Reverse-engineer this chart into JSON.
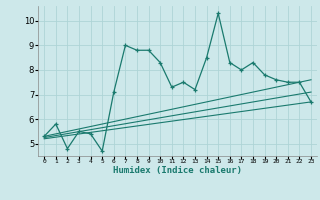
{
  "xlabel": "Humidex (Indice chaleur)",
  "bg_color": "#cde8ea",
  "line_color": "#1a7a6e",
  "grid_color": "#aed4d6",
  "x_ticks": [
    0,
    1,
    2,
    3,
    4,
    5,
    6,
    7,
    8,
    9,
    10,
    11,
    12,
    13,
    14,
    15,
    16,
    17,
    18,
    19,
    20,
    21,
    22,
    23
  ],
  "y_ticks": [
    5,
    6,
    7,
    8,
    9,
    10
  ],
  "xlim": [
    -0.5,
    23.5
  ],
  "ylim": [
    4.5,
    10.6
  ],
  "series1_x": [
    0,
    1,
    2,
    3,
    4,
    5,
    6,
    7,
    8,
    9,
    10,
    11,
    12,
    13,
    14,
    15,
    16,
    17,
    18,
    19,
    20,
    21,
    22,
    23
  ],
  "series1_y": [
    5.3,
    5.8,
    4.8,
    5.5,
    5.4,
    4.7,
    7.1,
    9.0,
    8.8,
    8.8,
    8.3,
    7.3,
    7.5,
    7.2,
    8.5,
    10.3,
    8.3,
    8.0,
    8.3,
    7.8,
    7.6,
    7.5,
    7.5,
    6.7
  ],
  "series2_x": [
    0,
    23
  ],
  "series2_y": [
    5.3,
    7.6
  ],
  "series3_x": [
    0,
    23
  ],
  "series3_y": [
    5.2,
    6.7
  ],
  "series4_x": [
    0,
    23
  ],
  "series4_y": [
    5.25,
    7.1
  ],
  "marker": "+"
}
